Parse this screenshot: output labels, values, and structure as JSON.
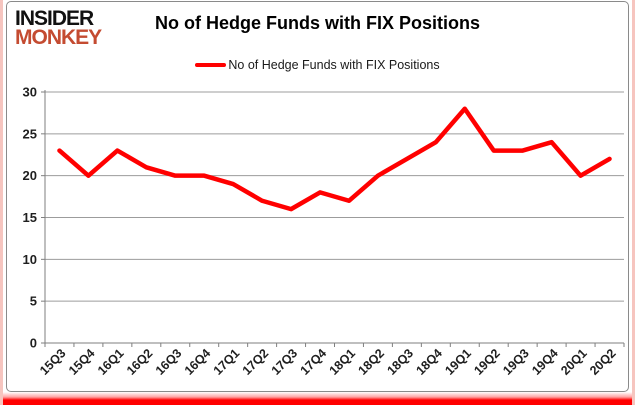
{
  "branding": {
    "logo_line1": "INSIDER",
    "logo_line2": "MONKEY"
  },
  "header": {
    "title": "No of Hedge Funds with FIX Positions"
  },
  "legend": {
    "label": "No of Hedge Funds with FIX Positions"
  },
  "chart_data": {
    "type": "line",
    "title": "No of Hedge Funds with FIX Positions",
    "categories": [
      "15Q3",
      "15Q4",
      "16Q1",
      "16Q2",
      "16Q3",
      "16Q4",
      "17Q1",
      "17Q2",
      "17Q3",
      "17Q4",
      "18Q1",
      "18Q2",
      "18Q3",
      "18Q4",
      "19Q1",
      "19Q2",
      "19Q3",
      "19Q4",
      "20Q1",
      "20Q2"
    ],
    "series": [
      {
        "name": "No of Hedge Funds with FIX Positions",
        "values": [
          23,
          20,
          23,
          21,
          20,
          20,
          19,
          17,
          16,
          18,
          17,
          20,
          22,
          24,
          28,
          23,
          23,
          24,
          20,
          22
        ]
      }
    ],
    "ylim": [
      0,
      30
    ],
    "yticks": [
      0,
      5,
      10,
      15,
      20,
      25,
      30
    ],
    "grid": true,
    "legend_position": "top-center",
    "x_tick_rotation_deg": -45
  },
  "colors": {
    "series_line": "#ff0000",
    "logo_red": "#c44b31",
    "logo_black": "#111111",
    "gridline": "#9c9c9c",
    "axis": "#7f7f7f",
    "tick_text": "#1f1f1f",
    "frame_border": "#8a8a8a",
    "edge_pink": "#f6c5bf",
    "bottom_bar": "#ff0000"
  }
}
